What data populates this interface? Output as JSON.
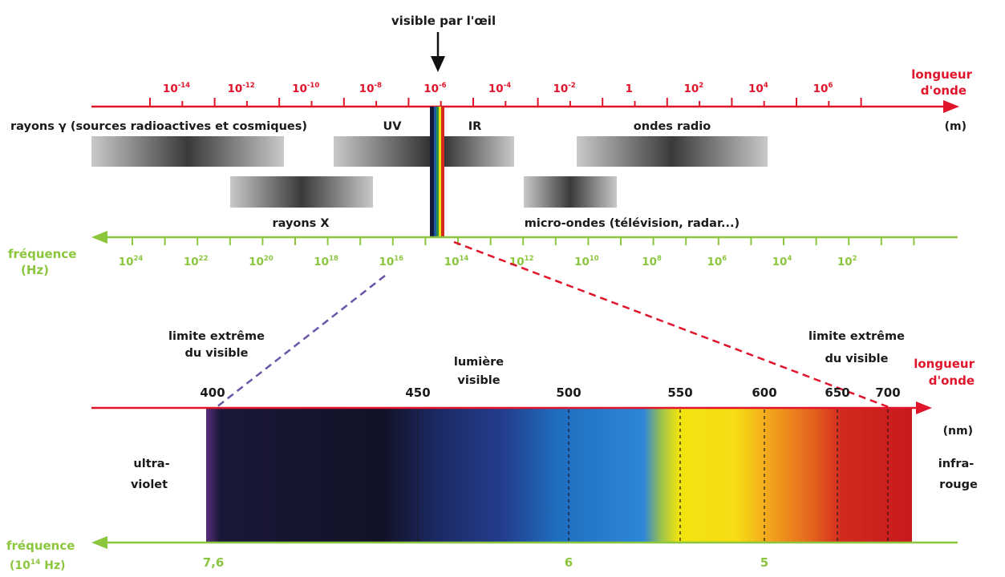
{
  "top_spectrum": {
    "visible_label": "visible par l'œil",
    "wavelength_axis": {
      "label_line1": "longueur",
      "label_line2": "d'onde",
      "unit": "(m)"
    },
    "wavelength_ticks": [
      {
        "base": "10",
        "exp": "-14"
      },
      {
        "base": "10",
        "exp": "-12"
      },
      {
        "base": "10",
        "exp": "-10"
      },
      {
        "base": "10",
        "exp": "-8"
      },
      {
        "base": "10",
        "exp": "-6"
      },
      {
        "base": "10",
        "exp": "-4"
      },
      {
        "base": "10",
        "exp": "-2"
      },
      {
        "base": "1",
        "exp": ""
      },
      {
        "base": "10",
        "exp": "2"
      },
      {
        "base": "10",
        "exp": "4"
      },
      {
        "base": "10",
        "exp": "6"
      }
    ],
    "bands": {
      "gamma": "rayons γ (sources radioactives et cosmiques)",
      "uv": "UV",
      "ir": "IR",
      "radio": "ondes radio",
      "xrays": "rayons X",
      "microwaves": "micro-ondes (télévision, radar...)"
    },
    "frequency_axis": {
      "label_line1": "fréquence",
      "label_line2": "(Hz)"
    },
    "frequency_ticks": [
      {
        "base": "10",
        "exp": "24"
      },
      {
        "base": "10",
        "exp": "22"
      },
      {
        "base": "10",
        "exp": "20"
      },
      {
        "base": "10",
        "exp": "18"
      },
      {
        "base": "10",
        "exp": "16"
      },
      {
        "base": "10",
        "exp": "14"
      },
      {
        "base": "10",
        "exp": "12"
      },
      {
        "base": "10",
        "exp": "10"
      },
      {
        "base": "10",
        "exp": "8"
      },
      {
        "base": "10",
        "exp": "6"
      },
      {
        "base": "10",
        "exp": "4"
      },
      {
        "base": "10",
        "exp": "2"
      }
    ]
  },
  "visible_spectrum": {
    "left_limit_line1": "limite extrême",
    "left_limit_line2": "du visible",
    "center_line1": "lumière",
    "center_line2": "visible",
    "right_limit_line1": "limite extrême",
    "right_limit_line2": "du visible",
    "wavelength_axis": {
      "label_line1": "longueur",
      "label_line2": "d'onde",
      "unit": "(nm)"
    },
    "nm_ticks": [
      "400",
      "450",
      "500",
      "550",
      "600",
      "650",
      "700"
    ],
    "left_side_line1": "ultra-",
    "left_side_line2": "violet",
    "right_side_line1": "infra-",
    "right_side_line2": "rouge",
    "frequency_axis": {
      "label_line1": "fréquence",
      "label_line2": "(10",
      "label_exp": "14",
      "label_end": " Hz)"
    },
    "freq_ticks": [
      "7,6",
      "6",
      "5"
    ]
  },
  "colors": {
    "wavelength_axis": "#e0142a",
    "frequency_axis": "#8cc63f",
    "text": "#1a1a1a",
    "uv_dash": "#6a55a8",
    "ir_dash": "#e0142a"
  }
}
